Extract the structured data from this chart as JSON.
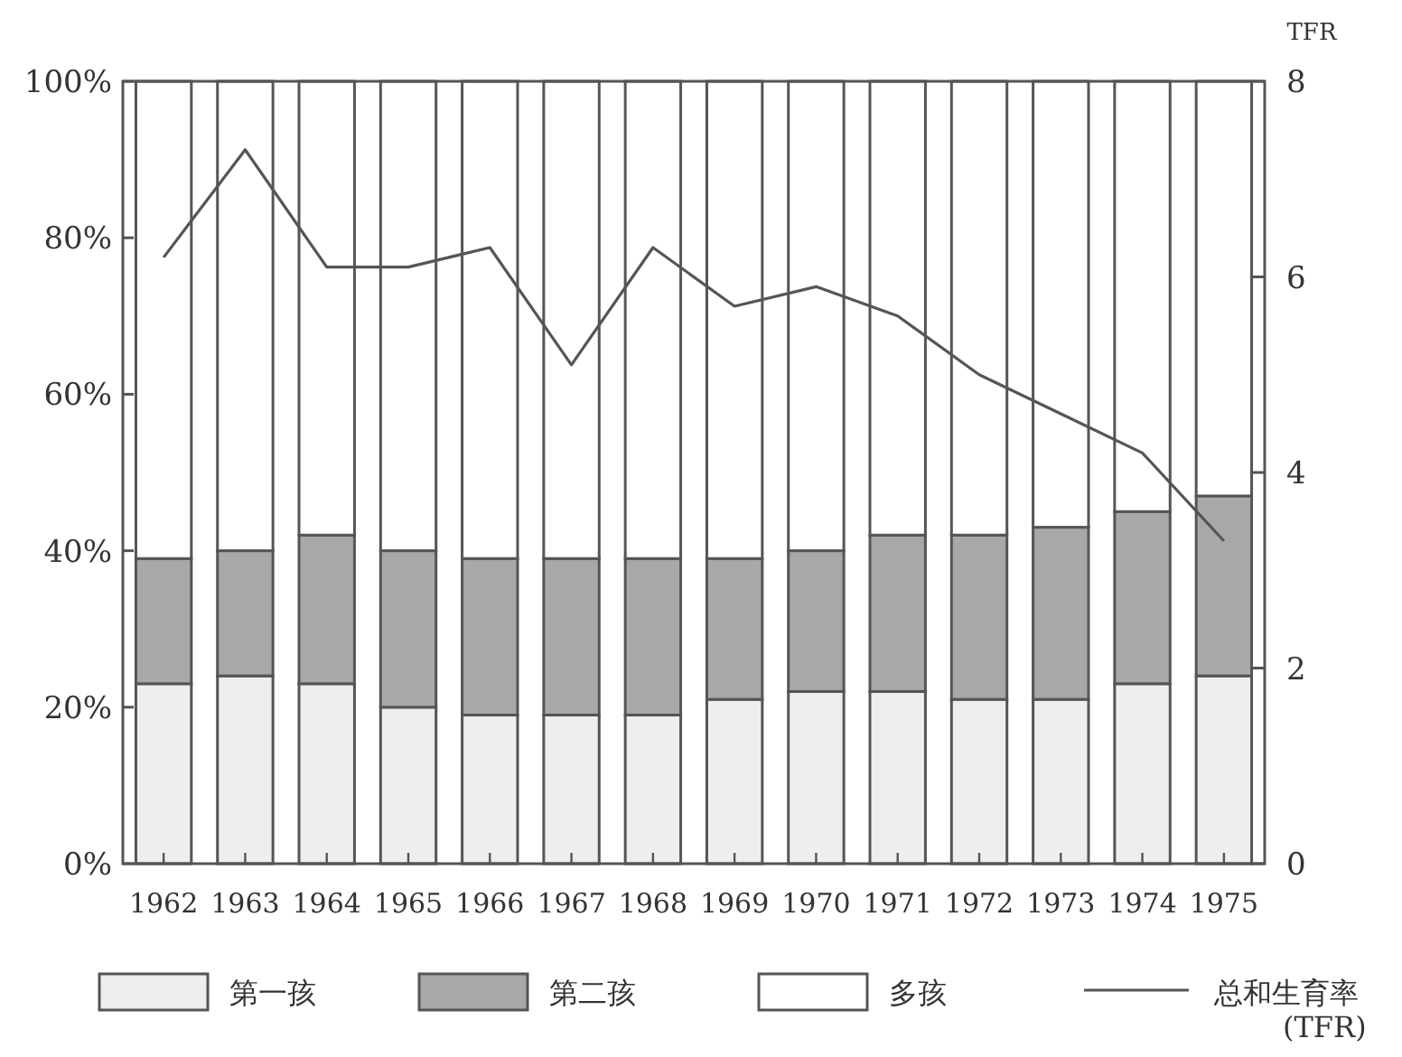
{
  "chart_data": {
    "type": "bar",
    "stacked": true,
    "categories": [
      "1962",
      "1963",
      "1964",
      "1965",
      "1966",
      "1967",
      "1968",
      "1969",
      "1970",
      "1971",
      "1972",
      "1973",
      "1974",
      "1975"
    ],
    "series": [
      {
        "name": "第一孩",
        "color": "#eeeeee",
        "values": [
          23,
          24,
          23,
          20,
          19,
          19,
          19,
          21,
          22,
          22,
          21,
          21,
          23,
          24
        ]
      },
      {
        "name": "第二孩",
        "color": "#a8a8a8",
        "values": [
          16,
          16,
          19,
          20,
          20,
          20,
          20,
          18,
          18,
          20,
          21,
          22,
          22,
          23
        ]
      },
      {
        "name": "多孩",
        "color": "#ffffff",
        "values": [
          61,
          60,
          58,
          60,
          61,
          61,
          61,
          61,
          60,
          58,
          58,
          57,
          55,
          53
        ]
      },
      {
        "name": "总和生育率\n(TFR)",
        "type": "line",
        "axis": "y2",
        "color": "#555555",
        "values": [
          6.2,
          7.3,
          6.1,
          6.1,
          6.3,
          5.1,
          6.3,
          5.7,
          5.9,
          5.6,
          5.0,
          4.6,
          4.2,
          3.3
        ]
      }
    ],
    "ylim": [
      0,
      100
    ],
    "yticks": [
      {
        "value": 0,
        "label": "0%"
      },
      {
        "value": 20,
        "label": "20%"
      },
      {
        "value": 40,
        "label": "40%"
      },
      {
        "value": 60,
        "label": "60%"
      },
      {
        "value": 80,
        "label": "80%"
      },
      {
        "value": 100,
        "label": "100%"
      }
    ],
    "y2label": "TFR",
    "y2lim": [
      0,
      8
    ],
    "y2ticks": [
      0,
      2,
      4,
      6,
      8
    ],
    "legend": "bottom",
    "grid": false
  }
}
